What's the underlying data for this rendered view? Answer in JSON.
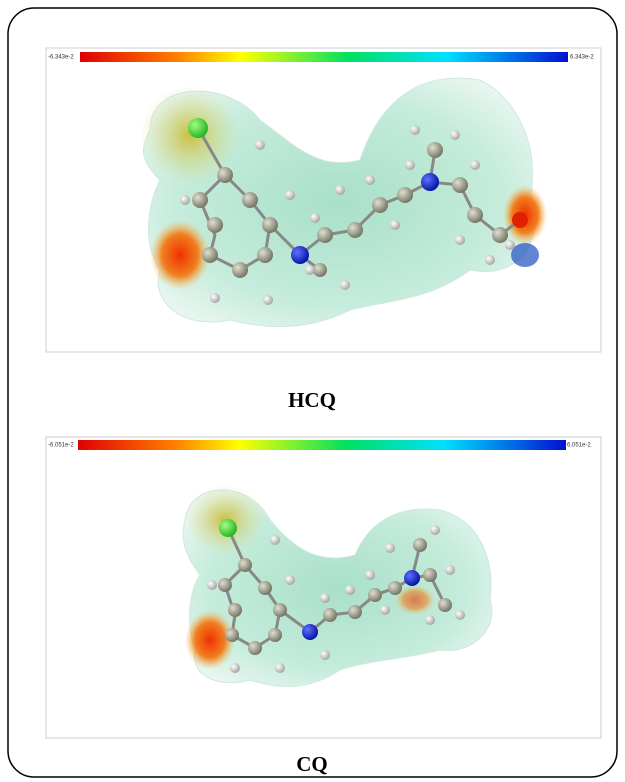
{
  "panels": [
    {
      "scale_min": "-6.343e-2",
      "scale_max": "6.343e-2",
      "label": "HCQ"
    },
    {
      "scale_min": "-6.051e-2",
      "scale_max": "6.051e-2",
      "label": "CQ"
    }
  ]
}
